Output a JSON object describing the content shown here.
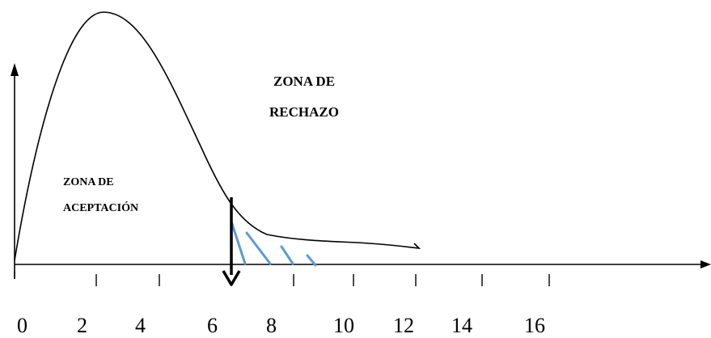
{
  "labels": {
    "rejection_line1": "ZONA DE",
    "rejection_line2": "RECHAZO",
    "acceptance_line1": "ZONA DE",
    "acceptance_line2": "ACEPTACIÓN"
  },
  "x_ticks": [
    "0",
    "2",
    "4",
    "6",
    "8",
    "10",
    "12",
    "14",
    "16"
  ],
  "critical_value": 6,
  "colors": {
    "curve": "#000000",
    "axis": "#000000",
    "hatch": "#5b9bd5"
  }
}
